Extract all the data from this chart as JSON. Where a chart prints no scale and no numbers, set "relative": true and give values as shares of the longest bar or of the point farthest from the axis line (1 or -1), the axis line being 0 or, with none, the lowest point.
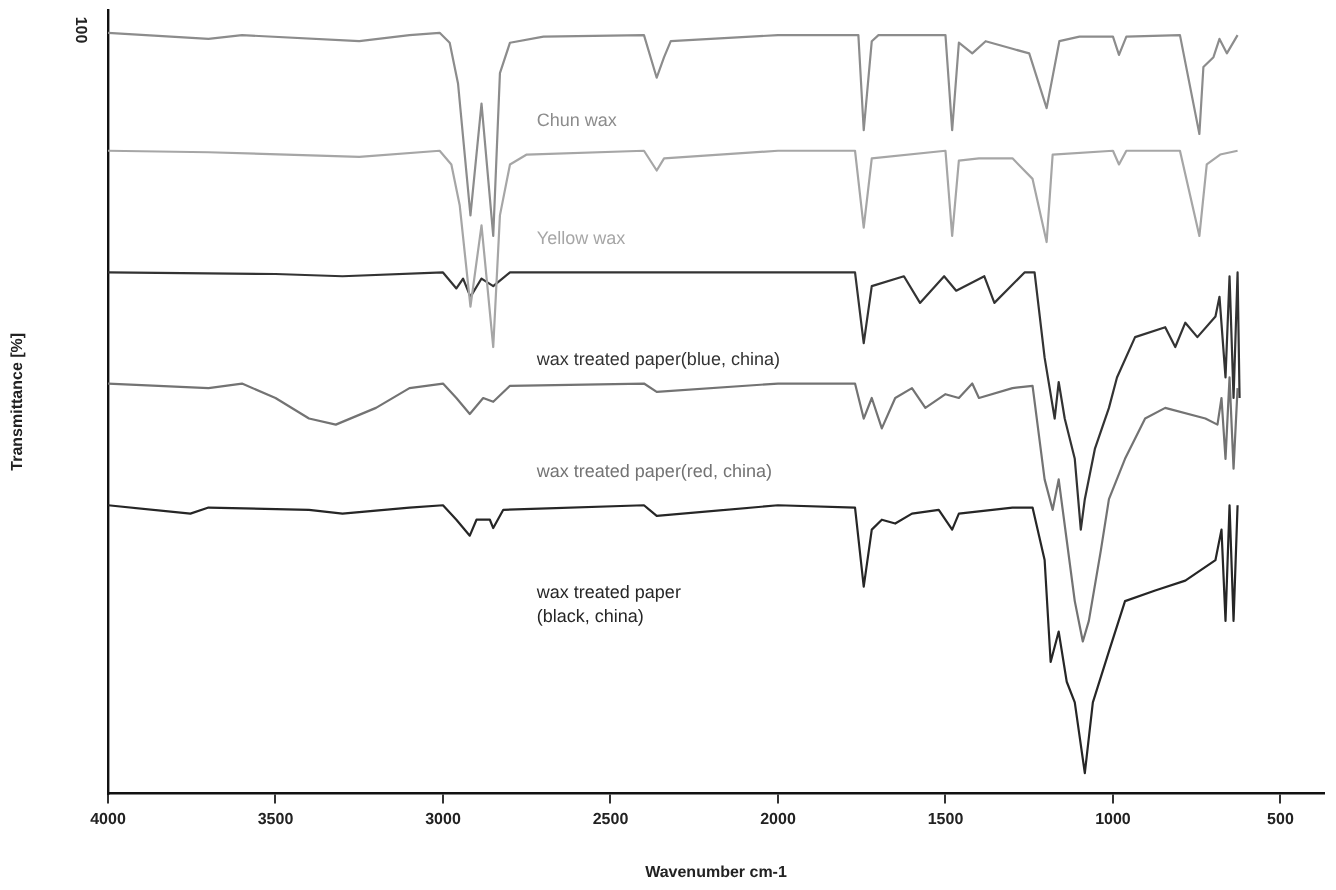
{
  "chart_data": {
    "type": "line",
    "relative": true,
    "xlabel": "Wavenumber cm-1",
    "ylabel": "Transmittance [%]",
    "annotations": [
      "100"
    ],
    "xlim": [
      4000,
      370
    ],
    "xticks": [
      4000,
      3500,
      3000,
      2500,
      2000,
      1500,
      1000,
      500
    ],
    "grid": false,
    "legend": false,
    "marker": "none",
    "line_style": "solid",
    "series": [
      {
        "name": "Chun wax",
        "color": "#8c8c8c",
        "x": [
          4000,
          3700,
          3600,
          3250,
          3100,
          3010,
          2980,
          2955,
          2918,
          2885,
          2850,
          2830,
          2800,
          2700,
          2400,
          2362,
          2340,
          2320,
          2000,
          1760,
          1744,
          1720,
          1700,
          1500,
          1480,
          1460,
          1420,
          1380,
          1300,
          1250,
          1198,
          1160,
          1100,
          1000,
          982,
          960,
          800,
          742,
          730,
          700,
          682,
          660,
          628
        ],
        "values": [
          1.0,
          0.992,
          0.997,
          0.989,
          0.997,
          1.0,
          0.987,
          0.933,
          0.76,
          0.907,
          0.733,
          0.947,
          0.987,
          0.995,
          0.997,
          0.941,
          0.968,
          0.989,
          0.997,
          0.997,
          0.872,
          0.989,
          0.997,
          0.997,
          0.872,
          0.987,
          0.973,
          0.989,
          0.979,
          0.973,
          0.901,
          0.989,
          0.995,
          0.995,
          0.971,
          0.995,
          0.997,
          0.867,
          0.955,
          0.968,
          0.992,
          0.973,
          0.997
        ]
      },
      {
        "name": "Yellow wax",
        "color": "#a6a6a6",
        "x": [
          4000,
          3700,
          3250,
          3010,
          2975,
          2950,
          2918,
          2885,
          2850,
          2830,
          2800,
          2750,
          2400,
          2362,
          2340,
          2000,
          1770,
          1744,
          1720,
          1500,
          1480,
          1460,
          1400,
          1300,
          1240,
          1198,
          1180,
          1000,
          982,
          960,
          800,
          742,
          720,
          680,
          628
        ],
        "values": [
          0.845,
          0.843,
          0.837,
          0.845,
          0.827,
          0.773,
          0.64,
          0.747,
          0.587,
          0.76,
          0.827,
          0.84,
          0.845,
          0.819,
          0.835,
          0.845,
          0.845,
          0.744,
          0.835,
          0.845,
          0.733,
          0.832,
          0.835,
          0.835,
          0.808,
          0.725,
          0.84,
          0.845,
          0.827,
          0.845,
          0.845,
          0.733,
          0.827,
          0.84,
          0.845
        ]
      },
      {
        "name": "wax treated paper(blue, china)",
        "color": "#333333",
        "x": [
          4000,
          3500,
          3300,
          3000,
          2960,
          2940,
          2918,
          2885,
          2850,
          2800,
          2000,
          1770,
          1744,
          1720,
          1624,
          1576,
          1504,
          1468,
          1384,
          1354,
          1264,
          1234,
          1204,
          1174,
          1162,
          1144,
          1114,
          1096,
          1084,
          1054,
          1012,
          988,
          934,
          844,
          814,
          784,
          748,
          694,
          682,
          664,
          652,
          640,
          628,
          622
        ],
        "values": [
          0.685,
          0.683,
          0.68,
          0.685,
          0.664,
          0.677,
          0.653,
          0.677,
          0.667,
          0.685,
          0.685,
          0.685,
          0.592,
          0.667,
          0.68,
          0.645,
          0.68,
          0.661,
          0.68,
          0.645,
          0.685,
          0.685,
          0.573,
          0.493,
          0.541,
          0.493,
          0.44,
          0.347,
          0.387,
          0.453,
          0.507,
          0.547,
          0.6,
          0.613,
          0.587,
          0.619,
          0.6,
          0.627,
          0.653,
          0.547,
          0.68,
          0.52,
          0.685,
          0.52
        ]
      },
      {
        "name": "wax treated paper(red, china)",
        "color": "#737373",
        "x": [
          4000,
          3700,
          3600,
          3500,
          3400,
          3320,
          3200,
          3100,
          3000,
          2960,
          2920,
          2880,
          2850,
          2800,
          2400,
          2362,
          2000,
          1770,
          1744,
          1720,
          1690,
          1650,
          1600,
          1560,
          1500,
          1460,
          1420,
          1400,
          1300,
          1240,
          1204,
          1180,
          1162,
          1138,
          1114,
          1090,
          1072,
          1036,
          1012,
          964,
          904,
          844,
          724,
          688,
          676,
          664,
          652,
          640,
          628
        ],
        "values": [
          0.539,
          0.533,
          0.539,
          0.52,
          0.493,
          0.485,
          0.507,
          0.533,
          0.539,
          0.52,
          0.499,
          0.52,
          0.515,
          0.536,
          0.539,
          0.528,
          0.539,
          0.539,
          0.493,
          0.52,
          0.48,
          0.52,
          0.533,
          0.507,
          0.525,
          0.52,
          0.539,
          0.52,
          0.533,
          0.536,
          0.413,
          0.373,
          0.413,
          0.333,
          0.253,
          0.2,
          0.227,
          0.32,
          0.387,
          0.44,
          0.493,
          0.507,
          0.493,
          0.485,
          0.52,
          0.44,
          0.547,
          0.427,
          0.533
        ]
      },
      {
        "name": "wax treated paper (black, china)",
        "color": "#262626",
        "x": [
          4000,
          3754,
          3700,
          3400,
          3300,
          3100,
          3000,
          2960,
          2920,
          2900,
          2860,
          2850,
          2820,
          2400,
          2362,
          2000,
          1770,
          1744,
          1720,
          1690,
          1650,
          1600,
          1520,
          1480,
          1460,
          1300,
          1240,
          1204,
          1186,
          1162,
          1138,
          1114,
          1084,
          1060,
          1012,
          964,
          874,
          784,
          694,
          676,
          664,
          652,
          640,
          628
        ],
        "values": [
          0.379,
          0.368,
          0.376,
          0.373,
          0.368,
          0.376,
          0.379,
          0.36,
          0.339,
          0.36,
          0.36,
          0.349,
          0.373,
          0.379,
          0.365,
          0.379,
          0.376,
          0.272,
          0.347,
          0.36,
          0.355,
          0.368,
          0.373,
          0.347,
          0.368,
          0.376,
          0.376,
          0.307,
          0.173,
          0.213,
          0.147,
          0.12,
          0.027,
          0.12,
          0.187,
          0.253,
          0.267,
          0.28,
          0.307,
          0.347,
          0.227,
          0.379,
          0.227,
          0.379
        ]
      }
    ]
  }
}
